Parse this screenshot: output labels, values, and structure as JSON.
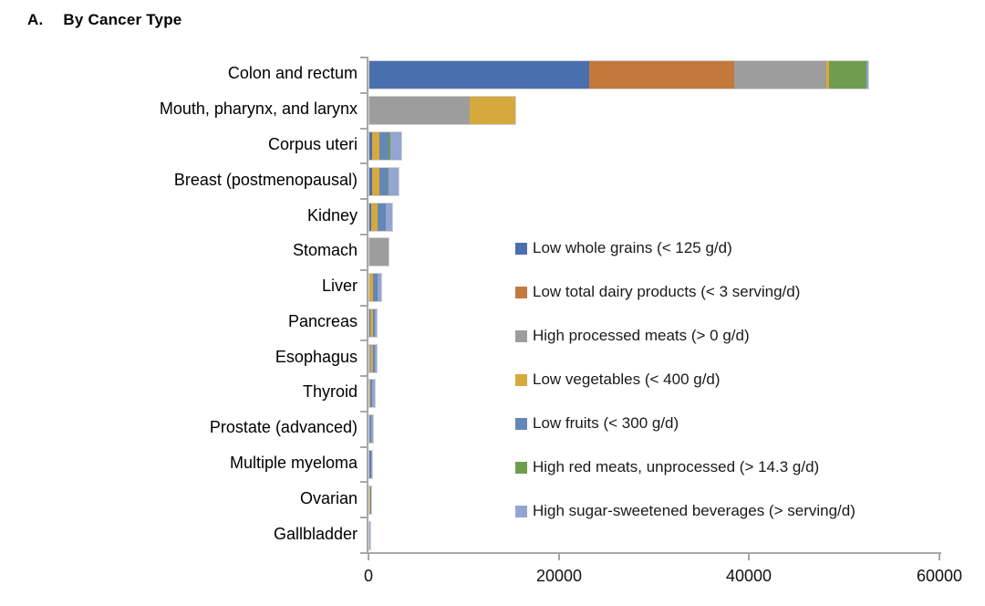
{
  "title": {
    "prefix": "A.",
    "text": "By Cancer Type"
  },
  "colors": {
    "axis": "#a8a8a8",
    "whole_grains": "#4a6fae",
    "dairy": "#c4793c",
    "processed_meats": "#9d9d9d",
    "vegetables": "#d6a93c",
    "fruits": "#6587b7",
    "red_meats": "#6f9d4d",
    "sugar_sweetened_beverages": "#95a5d2"
  },
  "chart_data": {
    "type": "bar",
    "orientation": "horizontal-stacked",
    "title": "A. By Cancer Type",
    "xlabel": "",
    "ylabel": "",
    "xlim": [
      0,
      60000
    ],
    "x_ticks": [
      0,
      20000,
      40000,
      60000
    ],
    "x_tick_labels": [
      "0",
      "20000",
      "40000",
      "60000"
    ],
    "grid": false,
    "legend_position": "center-right",
    "categories": [
      "Colon and rectum",
      "Mouth, pharynx, and larynx",
      "Corpus uteri",
      "Breast (postmenopausal)",
      "Kidney",
      "Stomach",
      "Liver",
      "Pancreas",
      "Esophagus",
      "Thyroid",
      "Prostate (advanced)",
      "Multiple myeloma",
      "Ovarian",
      "Gallbladder"
    ],
    "series": [
      {
        "name": "Low whole grains (< 125 g/d)",
        "color": "#4a6fae",
        "values": [
          23100,
          0,
          300,
          300,
          200,
          0,
          0,
          100,
          0,
          0,
          0,
          100,
          0,
          0
        ]
      },
      {
        "name": "Low total dairy products (< 3 serving/d)",
        "color": "#c4793c",
        "values": [
          15200,
          0,
          0,
          0,
          0,
          0,
          0,
          0,
          0,
          0,
          0,
          0,
          0,
          0
        ]
      },
      {
        "name": "High processed meats (> 0 g/d)",
        "color": "#9d9d9d",
        "values": [
          9700,
          10500,
          0,
          0,
          0,
          2050,
          0,
          0,
          200,
          0,
          0,
          0,
          0,
          0
        ]
      },
      {
        "name": "Low vegetables (< 400 g/d)",
        "color": "#d6a93c",
        "values": [
          300,
          4800,
          800,
          800,
          700,
          0,
          400,
          300,
          150,
          100,
          0,
          0,
          100,
          0
        ]
      },
      {
        "name": "Low fruits (< 300 g/d)",
        "color": "#6587b7",
        "values": [
          0,
          0,
          900,
          850,
          850,
          0,
          450,
          200,
          200,
          200,
          150,
          100,
          90,
          0
        ]
      },
      {
        "name": "High red meats, unprocessed (> 14.3 g/d)",
        "color": "#6f9d4d",
        "values": [
          3900,
          0,
          200,
          100,
          0,
          0,
          0,
          0,
          60,
          0,
          0,
          0,
          0,
          0
        ]
      },
      {
        "name": "High sugar-sweetened beverages (> serving/d)",
        "color": "#95a5d2",
        "values": [
          200,
          0,
          1200,
          1000,
          650,
          0,
          400,
          170,
          160,
          280,
          230,
          90,
          0,
          100
        ]
      }
    ]
  }
}
